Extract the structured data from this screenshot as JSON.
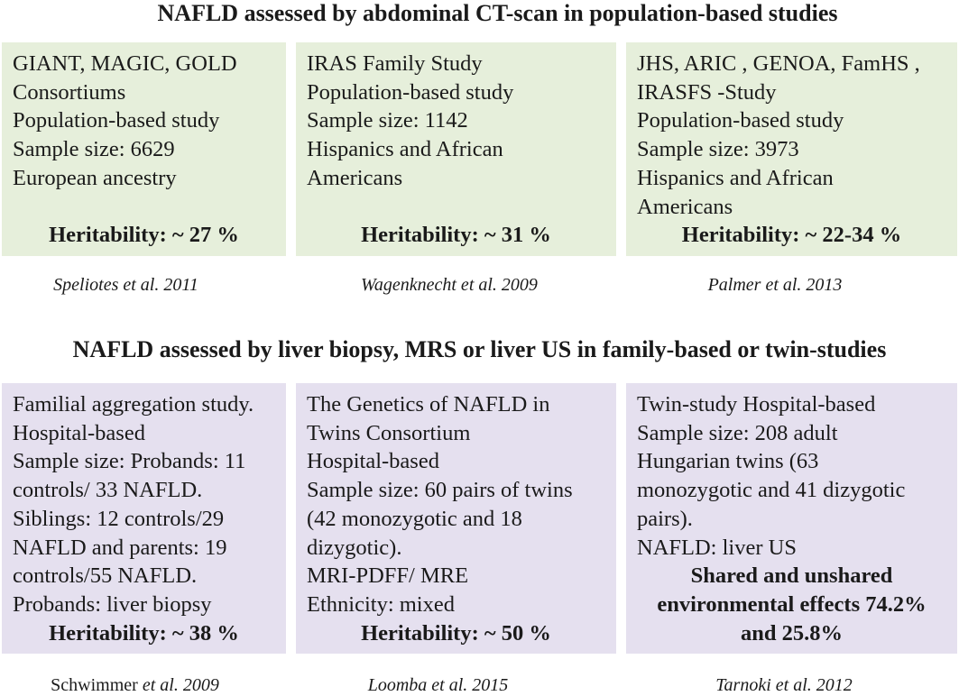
{
  "top": {
    "title": "NAFLD assessed by abdominal CT-scan in population-based studies",
    "boxes": [
      {
        "lines": [
          "GIANT, MAGIC, GOLD",
          "Consortiums",
          "Population-based study",
          "Sample size: 6629",
          "European ancestry"
        ],
        "heritability": "Heritability: ~ 27 %",
        "citation_author": "Speliotes et al. 2011",
        "citation_rest": ""
      },
      {
        "lines": [
          "IRAS Family Study",
          "Population-based study",
          "Sample size:  1142",
          "Hispanics and African",
          "Americans"
        ],
        "heritability": "Heritability: ~ 31 %",
        "citation_author": "Wagenknecht et al. 2009",
        "citation_rest": ""
      },
      {
        "lines": [
          "JHS, ARIC , GENOA, FamHS ,",
          "IRASFS -Study",
          "Population-based study",
          "Sample size: 3973",
          "Hispanics and African",
          "Americans"
        ],
        "heritability": "Heritability: ~ 22-34 %",
        "citation_author": "Palmer  et al. 2013",
        "citation_rest": ""
      }
    ]
  },
  "bottom": {
    "title": "NAFLD assessed by liver biopsy, MRS or liver US in family-based or twin-studies",
    "boxes": [
      {
        "lines": [
          "Familial aggregation study.",
          "Hospital-based",
          "Sample size:  Probands: 11",
          "controls/ 33 NAFLD.",
          "Siblings: 12 controls/29",
          "NAFLD and parents: 19",
          "controls/55 NAFLD.",
          "Probands: liver biopsy"
        ],
        "result_lines": [
          "Heritability: ~ 38 %"
        ],
        "citation_name": "Schwimmer ",
        "citation_italic": "et al. 2009"
      },
      {
        "lines": [
          "The Genetics of NAFLD in",
          "Twins Consortium",
          "Hospital-based",
          "Sample size: 60 pairs of twins",
          "(42 monozygotic and 18",
          "dizygotic).",
          "MRI-PDFF/ MRE",
          "Ethnicity: mixed"
        ],
        "result_lines": [
          "Heritability: ~ 50 %"
        ],
        "citation_name": "",
        "citation_italic": "Loomba et al. 2015"
      },
      {
        "lines": [
          "Twin-study Hospital-based",
          "Sample size: 208 adult",
          "Hungarian twins (63",
          "monozygotic and 41 dizygotic",
          "pairs).",
          "NAFLD: liver US"
        ],
        "result_lines": [
          "Shared and unshared",
          "environmental effects 74.2%",
          "and 25.8%"
        ],
        "citation_name": "",
        "citation_italic": "Tarnoki et al. 2012"
      }
    ]
  }
}
